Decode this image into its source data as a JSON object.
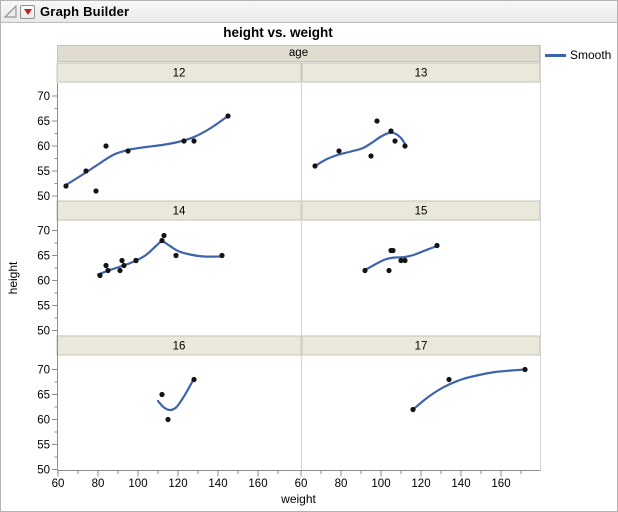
{
  "window": {
    "title": "Graph Builder",
    "icons": [
      {
        "name": "disclosure-triangle-icon",
        "meaning": "outline open/close"
      },
      {
        "name": "red-triangle-menu-icon",
        "meaning": "platform options menu"
      }
    ]
  },
  "chart": {
    "title": "height vs. weight",
    "xlabel": "weight",
    "ylabel": "height",
    "facet_label": "age",
    "legend": {
      "label": "Smooth",
      "color": "#3e63ad"
    }
  },
  "chart_data": {
    "type": "scatter",
    "title": "height vs. weight",
    "xlabel": "weight",
    "ylabel": "height",
    "facet_by": "age",
    "legend": [
      "Smooth"
    ],
    "point_color": "#141414",
    "smooth_color": "#3e63ad",
    "x_ticks": [
      60,
      80,
      100,
      120,
      140,
      160
    ],
    "x_minor_ticks": [
      70,
      90,
      110,
      130,
      150,
      170
    ],
    "y_ticks": [
      50,
      55,
      60,
      65,
      70
    ],
    "y_minor_ticks": [
      52.5,
      57.5,
      62.5,
      67.5
    ],
    "xlim": [
      59.5,
      180.5
    ],
    "ylim": [
      49,
      72.5
    ],
    "facets": [
      {
        "age": "12",
        "points": [
          [
            64,
            52
          ],
          [
            74,
            55
          ],
          [
            79,
            51
          ],
          [
            84,
            60
          ],
          [
            95,
            59
          ],
          [
            123,
            61
          ],
          [
            128,
            61
          ],
          [
            145,
            66
          ]
        ],
        "smooth": [
          [
            64,
            52.2
          ],
          [
            72,
            54.2
          ],
          [
            80,
            56.3
          ],
          [
            88,
            58.3
          ],
          [
            96,
            59.3
          ],
          [
            104,
            59.8
          ],
          [
            112,
            60.2
          ],
          [
            120,
            60.8
          ],
          [
            128,
            61.8
          ],
          [
            136,
            63.5
          ],
          [
            145,
            66
          ]
        ]
      },
      {
        "age": "13",
        "points": [
          [
            67,
            56
          ],
          [
            79,
            59
          ],
          [
            95,
            58
          ],
          [
            98,
            65
          ],
          [
            105,
            63
          ],
          [
            107,
            61
          ],
          [
            112,
            60
          ]
        ],
        "smooth": [
          [
            67,
            56
          ],
          [
            73,
            57.4
          ],
          [
            79,
            58.3
          ],
          [
            85,
            58.9
          ],
          [
            91,
            59.6
          ],
          [
            96,
            60.8
          ],
          [
            100,
            61.9
          ],
          [
            104,
            62.6
          ],
          [
            107,
            62.5
          ],
          [
            110,
            61.6
          ],
          [
            112,
            60.4
          ]
        ]
      },
      {
        "age": "14",
        "points": [
          [
            81,
            61
          ],
          [
            84,
            63
          ],
          [
            85,
            62
          ],
          [
            91,
            62
          ],
          [
            92,
            64
          ],
          [
            93,
            63
          ],
          [
            99,
            64
          ],
          [
            99,
            64
          ],
          [
            112,
            68
          ],
          [
            113,
            69
          ],
          [
            119,
            65
          ],
          [
            142,
            65
          ]
        ],
        "smooth": [
          [
            80,
            61.2
          ],
          [
            86,
            62.1
          ],
          [
            92,
            62.9
          ],
          [
            98,
            63.8
          ],
          [
            104,
            65.1
          ],
          [
            109,
            66.9
          ],
          [
            112,
            67.8
          ],
          [
            116,
            66.9
          ],
          [
            120,
            65.9
          ],
          [
            126,
            65.2
          ],
          [
            133,
            64.8
          ],
          [
            142,
            64.8
          ]
        ]
      },
      {
        "age": "15",
        "points": [
          [
            92,
            62
          ],
          [
            104,
            62
          ],
          [
            105,
            66
          ],
          [
            106,
            66
          ],
          [
            110,
            64
          ],
          [
            112,
            64
          ],
          [
            128,
            67
          ]
        ],
        "smooth": [
          [
            92,
            62.1
          ],
          [
            97,
            63.2
          ],
          [
            102,
            64.2
          ],
          [
            107,
            64.6
          ],
          [
            112,
            64.7
          ],
          [
            117,
            65.2
          ],
          [
            122,
            66
          ],
          [
            128,
            66.9
          ]
        ]
      },
      {
        "age": "16",
        "points": [
          [
            112,
            65
          ],
          [
            115,
            60
          ],
          [
            128,
            68
          ]
        ],
        "smooth": [
          [
            110,
            63.7
          ],
          [
            113,
            62.4
          ],
          [
            116,
            61.9
          ],
          [
            119,
            62.4
          ],
          [
            122,
            64
          ],
          [
            125,
            66
          ],
          [
            128,
            68.2
          ]
        ]
      },
      {
        "age": "17",
        "points": [
          [
            116,
            62
          ],
          [
            134,
            68
          ],
          [
            172,
            70
          ]
        ],
        "smooth": [
          [
            116,
            62
          ],
          [
            122,
            64
          ],
          [
            128,
            65.7
          ],
          [
            134,
            67
          ],
          [
            141,
            68.1
          ],
          [
            149,
            68.9
          ],
          [
            157,
            69.5
          ],
          [
            165,
            69.8
          ],
          [
            172,
            70
          ]
        ]
      }
    ]
  }
}
